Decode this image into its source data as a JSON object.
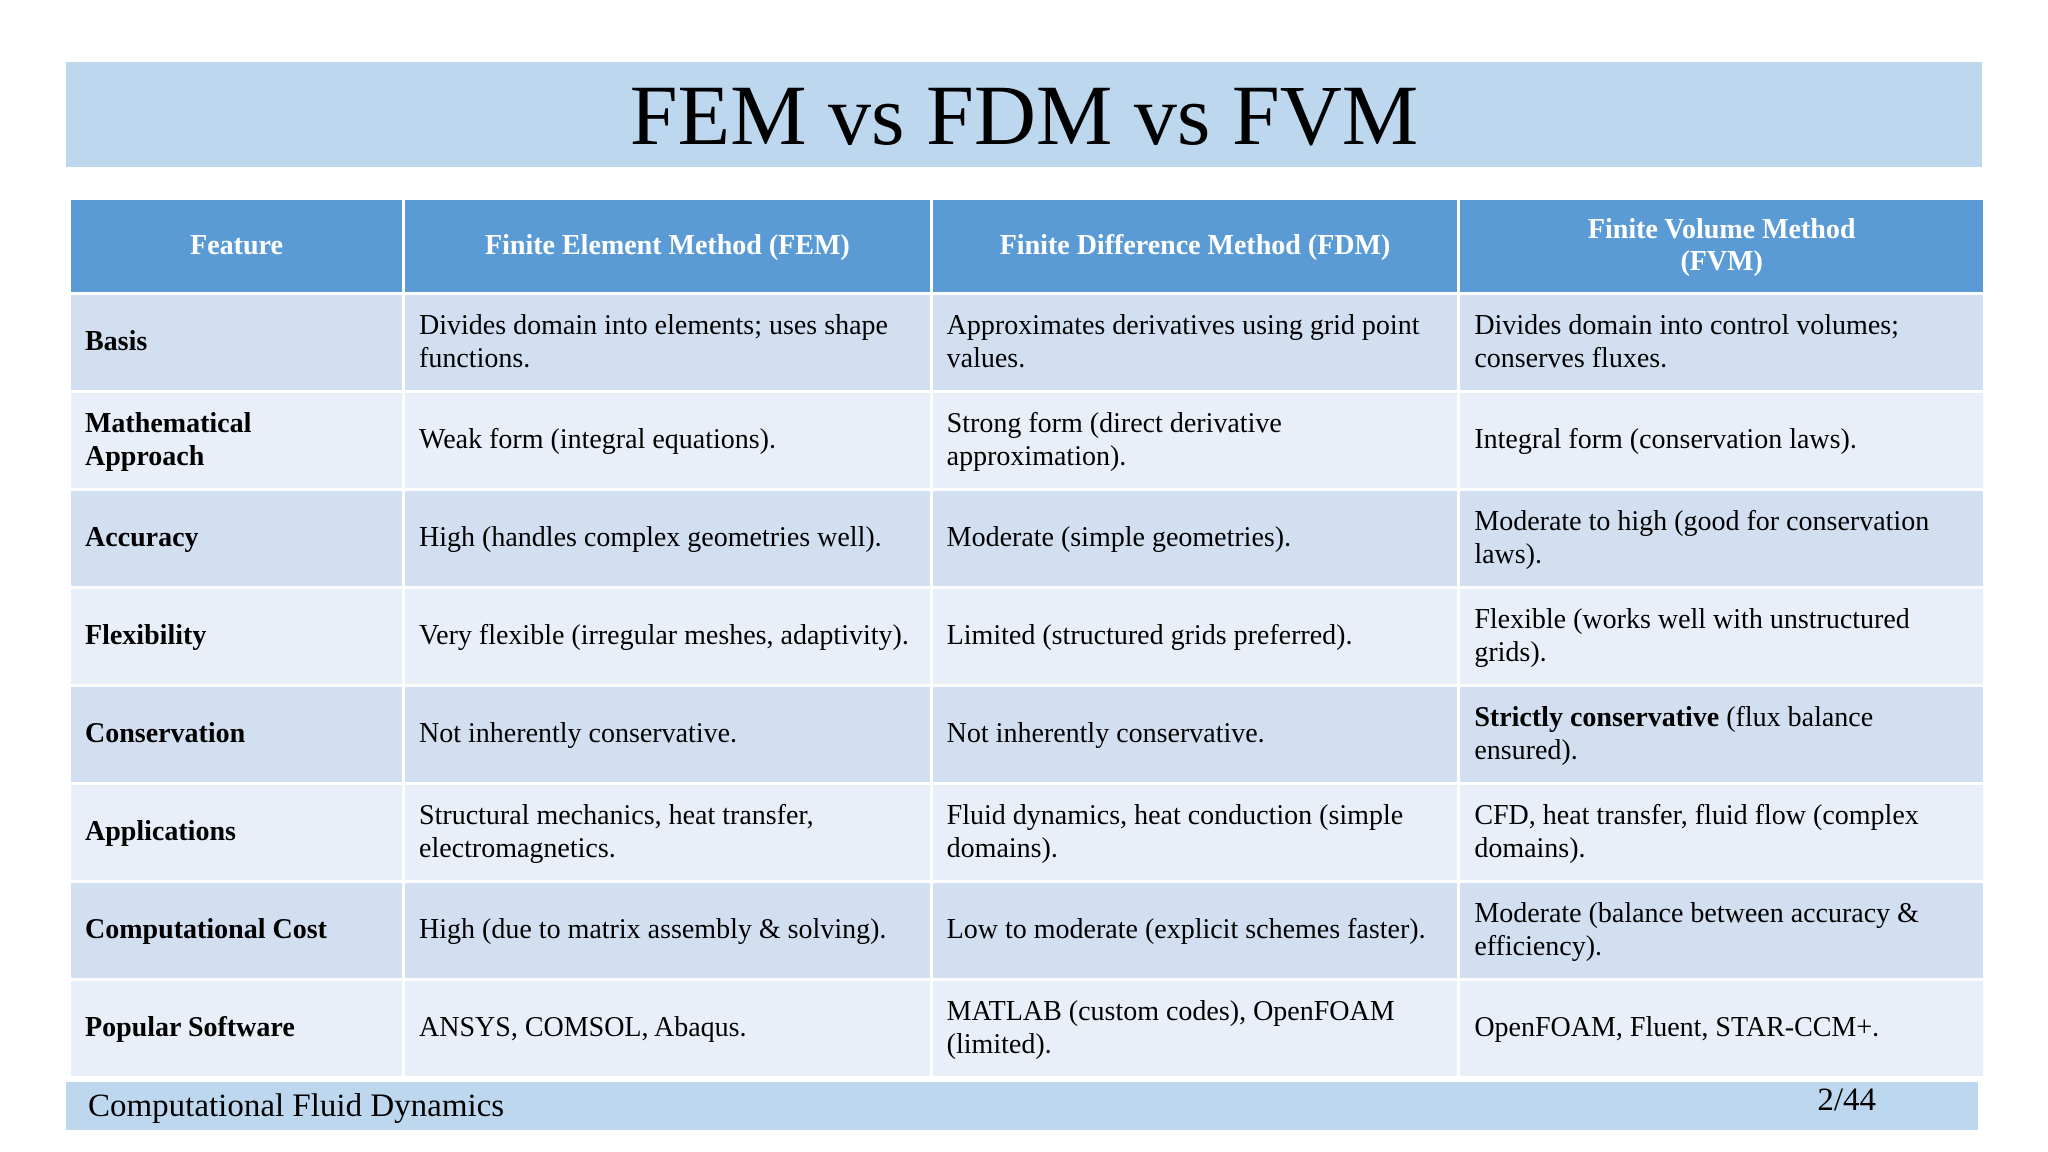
{
  "slide": {
    "title": "FEM vs FDM vs FVM",
    "footer_title": "Computational Fluid Dynamics",
    "page_number": "2/44"
  },
  "table": {
    "headers": [
      "Feature",
      "Finite Element Method (FEM)",
      "Finite Difference Method (FDM)",
      "Finite Volume Method (FVM)"
    ],
    "rows": [
      {
        "feature": "Basis",
        "fem": "Divides domain into elements; uses shape functions.",
        "fdm": "Approximates derivatives using grid point values.",
        "fvm": "Divides domain into control volumes; conserves fluxes."
      },
      {
        "feature": "Mathematical Approach",
        "fem": "Weak form (integral equations).",
        "fdm": "Strong form (direct derivative approximation).",
        "fvm": "Integral form (conservation laws)."
      },
      {
        "feature": "Accuracy",
        "fem": "High (handles complex geometries well).",
        "fdm": "Moderate (simple geometries).",
        "fvm": "Moderate to high (good for conservation laws)."
      },
      {
        "feature": "Flexibility",
        "fem": "Very flexible (irregular meshes, adaptivity).",
        "fdm": "Limited (structured grids preferred).",
        "fvm": "Flexible (works well with unstructured grids)."
      },
      {
        "feature": "Conservation",
        "fem": "Not inherently conservative.",
        "fdm": "Not inherently conservative.",
        "fvm_bold": "Strictly conservative",
        "fvm_rest": " (flux balance ensured)."
      },
      {
        "feature": "Applications",
        "fem": "Structural mechanics, heat transfer, electromagnetics.",
        "fdm": "Fluid dynamics, heat conduction (simple domains).",
        "fvm": "CFD, heat transfer, fluid flow (complex domains)."
      },
      {
        "feature": "Computational Cost",
        "fem": "High (due to matrix assembly & solving).",
        "fdm": "Low to moderate (explicit schemes faster).",
        "fvm": "Moderate (balance between accuracy & efficiency)."
      },
      {
        "feature": "Popular Software",
        "fem": "ANSYS, COMSOL, Abaqus.",
        "fdm": "MATLAB (custom codes), OpenFOAM (limited).",
        "fvm": "OpenFOAM, Fluent, STAR-CCM+."
      }
    ]
  },
  "colors": {
    "title_bar": "#bdd7ee",
    "header_bg": "#5b9bd5",
    "row_dark": "#d2dff0",
    "row_light": "#e9eff8"
  }
}
